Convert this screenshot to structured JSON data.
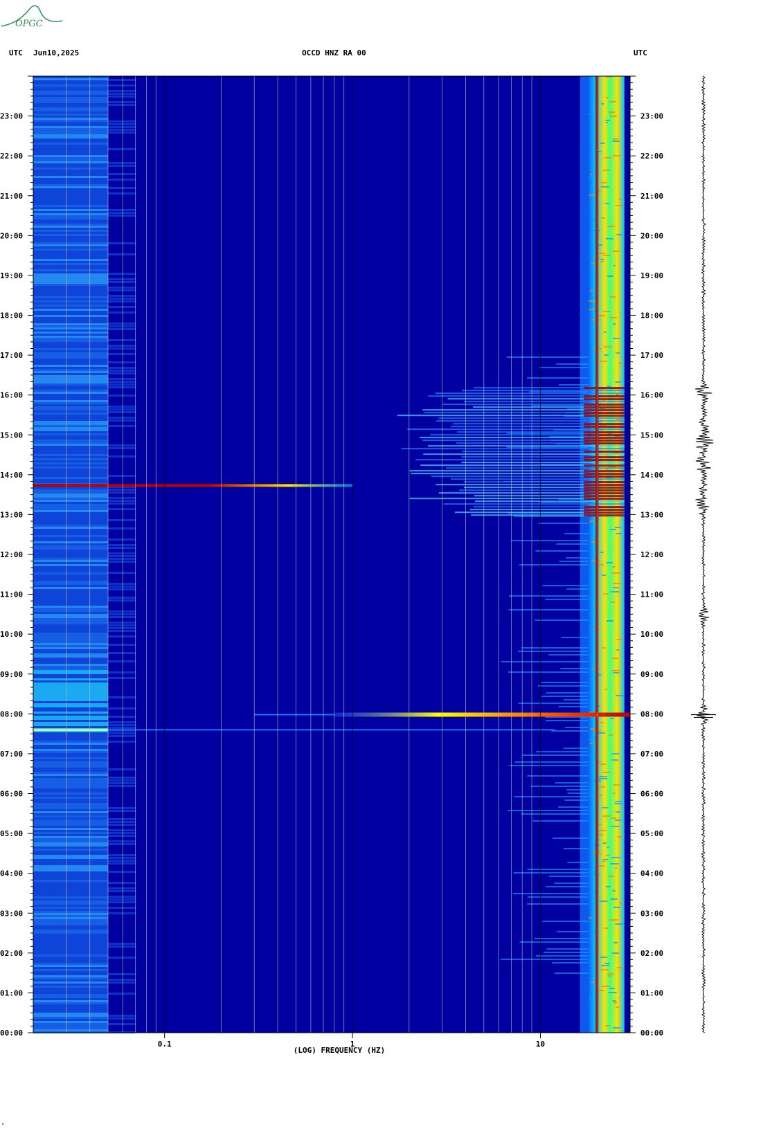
{
  "header": {
    "left_tz": "UTC",
    "date": "Jun10,2025",
    "station": "OCCD HNZ RA 00",
    "right_tz": "UTC",
    "logo_text": "OPGC",
    "corner_mark": "\""
  },
  "colors": {
    "background": "#0000a0",
    "gridline_minor": "#b8b8b8",
    "gridline_major": "#000000",
    "hot": "#a00000",
    "warm": "#ffff00",
    "cool": "#00c8ff",
    "logo": "#2e8b57"
  },
  "chart_data": {
    "type": "heatmap",
    "title": "OCCD HNZ RA 00",
    "xlabel": "(LOG) FREQUENCY (HZ)",
    "ylabel": "",
    "x_scale": "log",
    "xlim": [
      0.02,
      30
    ],
    "ylim_hours": [
      0,
      24
    ],
    "x_ticks": [
      {
        "value": 0.1,
        "label": "0.1"
      },
      {
        "value": 1,
        "label": "1"
      },
      {
        "value": 10,
        "label": "10"
      }
    ],
    "y_ticks": [
      "00:00",
      "01:00",
      "02:00",
      "03:00",
      "04:00",
      "05:00",
      "06:00",
      "07:00",
      "08:00",
      "09:00",
      "10:00",
      "11:00",
      "12:00",
      "13:00",
      "14:00",
      "15:00",
      "16:00",
      "17:00",
      "18:00",
      "19:00",
      "20:00",
      "21:00",
      "22:00",
      "23:00"
    ],
    "grid": true,
    "features": [
      {
        "name": "persistent_line",
        "freq_hz": 20,
        "hours": [
          0,
          24
        ],
        "level": "high"
      },
      {
        "name": "band_noise",
        "freq_hz": [
          18,
          28
        ],
        "hours": [
          0,
          24
        ],
        "level": "high"
      },
      {
        "name": "event_1",
        "hour": 13.73,
        "freq_hz": [
          0.02,
          1
        ],
        "level": "high"
      },
      {
        "name": "event_2",
        "hour": 7.98,
        "freq_hz": [
          0.8,
          30
        ],
        "level": "high"
      },
      {
        "name": "event_3",
        "hour": 7.6,
        "freq_hz": [
          0.02,
          0.05
        ],
        "level": "medium"
      },
      {
        "name": "burst_cluster",
        "hours": [
          13,
          16.2
        ],
        "freq_hz": [
          1.5,
          28
        ],
        "level": "high"
      },
      {
        "name": "low_freq_noise",
        "hours": [
          0,
          24
        ],
        "freq_hz": [
          0.02,
          0.05
        ],
        "level": "medium"
      }
    ],
    "trace_events_hours": [
      7.98,
      10.45,
      13.3,
      14.3,
      14.8,
      15.1,
      16.1
    ]
  }
}
